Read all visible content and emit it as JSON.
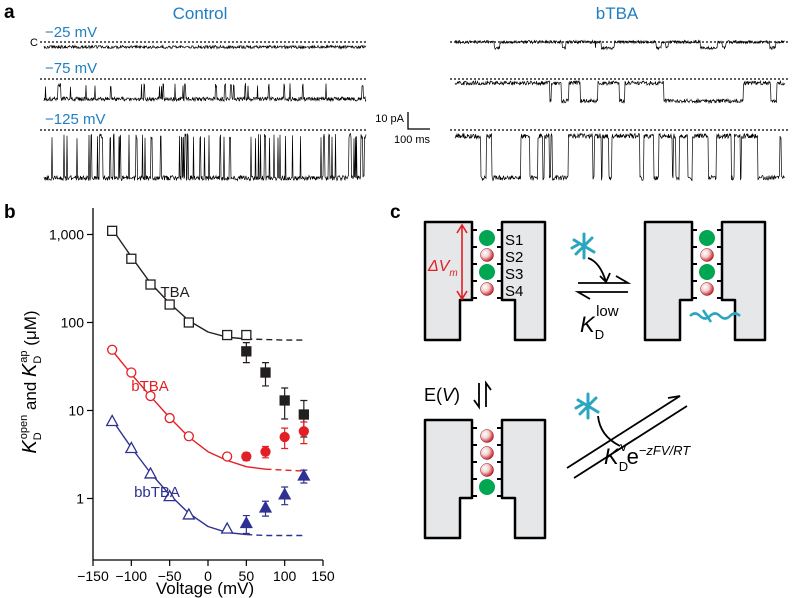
{
  "panel_a": {
    "label": "a",
    "conditions": [
      "Control",
      "bTBA"
    ],
    "closed_label": "C",
    "voltages": [
      "−25 mV",
      "−75 mV",
      "−125 mV"
    ],
    "scale_current": "10 pA",
    "scale_time": "100 ms"
  },
  "chart_data": {
    "type": "scatter",
    "panel_label": "b",
    "xlabel": "Voltage (mV)",
    "ylabel": [
      "K",
      "D",
      "open",
      " and ",
      "K",
      "D",
      "ap",
      " (μM)"
    ],
    "xlim": [
      -150,
      150
    ],
    "ylim": [
      0.2,
      2000
    ],
    "log_scale_y": true,
    "xticks": [
      {
        "value": -150,
        "label": "−150"
      },
      {
        "value": -100,
        "label": "−100"
      },
      {
        "value": -50,
        "label": "−50"
      },
      0,
      50,
      100,
      150
    ],
    "yticks": [
      1,
      10,
      100,
      {
        "value": 1000,
        "label": "1,000"
      }
    ],
    "series": [
      {
        "name": "TBA",
        "color": "#231f20",
        "marker": "square",
        "open_x": [
          -125,
          -100,
          -75,
          -50,
          -25,
          25,
          50
        ],
        "open_values": [
          1100,
          530,
          270,
          160,
          100,
          72,
          72
        ],
        "filled_x": [
          50,
          75,
          100,
          125
        ],
        "filled_values": [
          47,
          27,
          13,
          9
        ],
        "filled_errors": [
          12,
          8,
          5,
          4
        ],
        "fit_x": [
          -125,
          -100,
          -75,
          -50,
          -25,
          0,
          25,
          50
        ],
        "fit_values": [
          1150,
          560,
          280,
          165,
          105,
          78,
          68,
          65
        ],
        "extrapolation_x": [
          50,
          75,
          100,
          125
        ],
        "extrapolation_values": [
          65,
          64,
          63,
          63
        ]
      },
      {
        "name": "bTBA",
        "color": "#e31e24",
        "marker": "circle",
        "open_x": [
          -125,
          -100,
          -75,
          -50,
          -25,
          25
        ],
        "open_values": [
          49,
          27,
          14.6,
          8.2,
          5.1,
          3.0
        ],
        "filled_x": [
          50,
          75,
          100,
          125
        ],
        "filled_values": [
          3.0,
          3.4,
          5.0,
          5.8
        ],
        "filled_errors": [
          0.3,
          0.5,
          1.3,
          1.6
        ],
        "fit_x": [
          -125,
          -100,
          -75,
          -50,
          -25,
          0,
          25,
          50,
          75
        ],
        "fit_values": [
          48,
          26,
          14.5,
          8.3,
          5.0,
          3.4,
          2.7,
          2.3,
          2.15
        ],
        "extrapolation_x": [
          75,
          100,
          125
        ],
        "extrapolation_values": [
          2.15,
          2.1,
          2.05
        ]
      },
      {
        "name": "bbTBA",
        "color": "#2e3192",
        "marker": "triangle",
        "open_x": [
          -125,
          -100,
          -75,
          -50,
          -25,
          25
        ],
        "open_values": [
          7.5,
          3.7,
          1.9,
          1.05,
          0.65,
          0.45
        ],
        "filled_x": [
          50,
          75,
          100,
          125
        ],
        "filled_values": [
          0.52,
          0.78,
          1.1,
          1.8
        ],
        "filled_errors": [
          0.12,
          0.15,
          0.25,
          0.3
        ],
        "fit_x": [
          -125,
          -100,
          -75,
          -50,
          -25,
          0,
          25,
          50
        ],
        "fit_values": [
          7.8,
          3.8,
          1.95,
          1.1,
          0.68,
          0.48,
          0.41,
          0.39
        ],
        "extrapolation_x": [
          50,
          75,
          100,
          125
        ],
        "extrapolation_values": [
          0.39,
          0.38,
          0.38,
          0.38
        ]
      }
    ]
  },
  "panel_c": {
    "label": "c",
    "sites": [
      "S1",
      "S2",
      "S3",
      "S4"
    ],
    "membrane_potential": [
      "ΔV",
      "m"
    ],
    "kd_low": [
      "K",
      "D",
      "low"
    ],
    "gating": [
      "E(",
      "V",
      ")"
    ],
    "kd_voltage": [
      "K",
      "D",
      "v",
      "e",
      "−zFV/RT"
    ]
  }
}
